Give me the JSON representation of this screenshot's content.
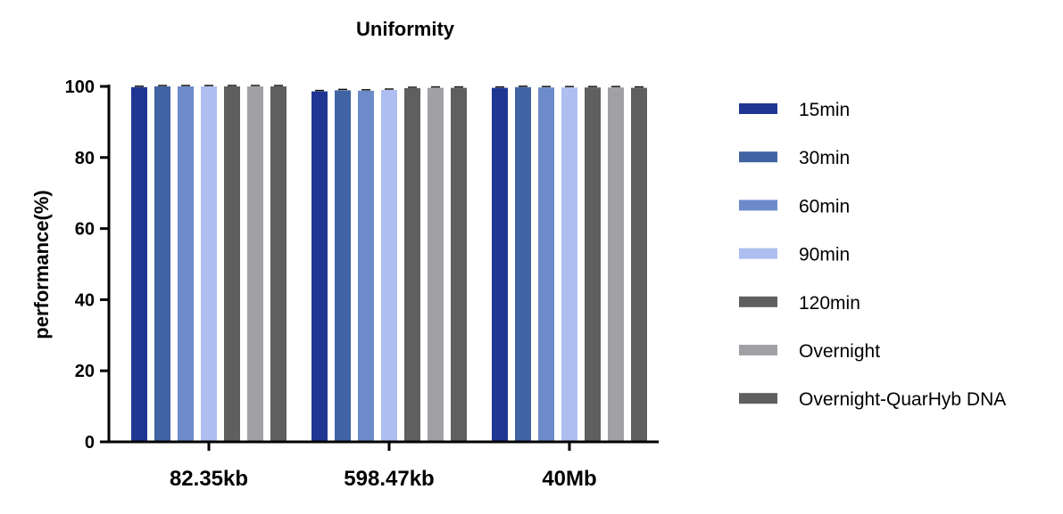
{
  "chart_data": {
    "type": "bar",
    "title": "Uniformity",
    "xlabel": "",
    "ylabel": "performance(%)",
    "ylim": [
      0,
      100
    ],
    "yticks": [
      0,
      20,
      40,
      60,
      80,
      100
    ],
    "grid": false,
    "legend_placement": "right",
    "categories": [
      "82.35kb",
      "598.47kb",
      "40Mb"
    ],
    "series": [
      {
        "name": "15min",
        "color": "#1f3693",
        "values": [
          99.8,
          98.6,
          99.6
        ]
      },
      {
        "name": "30min",
        "color": "#4163a3",
        "values": [
          100,
          98.9,
          99.8
        ]
      },
      {
        "name": "60min",
        "color": "#6d8bca",
        "values": [
          100,
          98.8,
          99.7
        ]
      },
      {
        "name": "90min",
        "color": "#aebef0",
        "values": [
          100,
          99.0,
          99.7
        ]
      },
      {
        "name": "120min",
        "color": "#5f5f5f",
        "values": [
          100,
          99.5,
          99.7
        ]
      },
      {
        "name": "Overnight",
        "color": "#a1a1a5",
        "values": [
          100,
          99.6,
          99.7
        ]
      },
      {
        "name": "Overnight-QuarHyb DNA",
        "color": "#5f5f5f",
        "values": [
          100,
          99.6,
          99.6
        ]
      }
    ]
  }
}
